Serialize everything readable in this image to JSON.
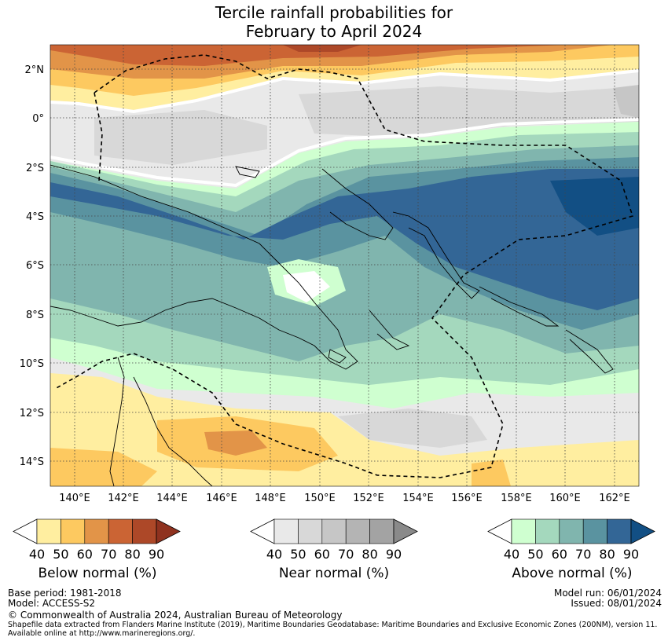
{
  "title_line1": "Tercile rainfall probabilities for",
  "title_line2": "February to April 2024",
  "lat_labels": [
    "2°N",
    "0°",
    "2°S",
    "4°S",
    "6°S",
    "8°S",
    "10°S",
    "12°S",
    "14°S"
  ],
  "lon_labels": [
    "140°E",
    "142°E",
    "144°E",
    "146°E",
    "148°E",
    "150°E",
    "152°E",
    "154°E",
    "156°E",
    "158°E",
    "160°E",
    "162°E"
  ],
  "colorbars": [
    {
      "name": "below",
      "title": "Below normal (%)",
      "ticks": [
        "40",
        "50",
        "60",
        "70",
        "80",
        "90"
      ],
      "colors": [
        "#ffeea0",
        "#fdc960",
        "#e29448",
        "#cb6434",
        "#ad4828"
      ],
      "extend_color": "#8f321f"
    },
    {
      "name": "near",
      "title": "Near normal (%)",
      "ticks": [
        "40",
        "50",
        "60",
        "70",
        "80",
        "90"
      ],
      "colors": [
        "#e9e9e9",
        "#d8d8d8",
        "#c6c6c6",
        "#b4b4b4",
        "#a3a3a3"
      ],
      "extend_color": "#8a8a8a"
    },
    {
      "name": "above",
      "title": "Above normal (%)",
      "ticks": [
        "40",
        "50",
        "60",
        "70",
        "80",
        "90"
      ],
      "colors": [
        "#cfffd0",
        "#a4d8bd",
        "#80b5ae",
        "#5a93a0",
        "#336696"
      ],
      "extend_color": "#124f84"
    }
  ],
  "footer": {
    "base_period": "Base period: 1981-2018",
    "model": "Model: ACCESS-S2",
    "model_run": "Model run: 06/01/2024",
    "issued": "Issued: 08/01/2024",
    "copyright": "© Commonwealth of Australia 2024, Australian Bureau of Meteorology",
    "shapefile": "Shapefile data extracted from Flanders Marine Institute (2019), Maritime Boundaries Geodatabase: Maritime Boundaries and Exclusive Economic Zones (200NM), version 11.",
    "available": "Available online at http://www.marineregions.org/."
  }
}
